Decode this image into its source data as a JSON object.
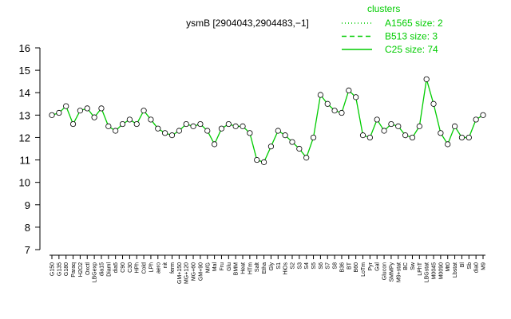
{
  "chart_data": {
    "type": "line",
    "title": "ysmB [2904043,2904483,−1]",
    "categories": [
      "G150",
      "G135",
      "G180",
      "Paraq",
      "H2O2",
      "Oxctl",
      "LBGexp",
      "dia15",
      "Diaml",
      "dia5",
      "C90",
      "C30",
      "HPh",
      "Cold",
      "LPh",
      "aero",
      "nit",
      "ferm",
      "GM+150",
      "MG+120",
      "MG+60",
      "GM+90",
      "M/G",
      "Mal",
      "Fru",
      "Glu",
      "BMM",
      "Heat",
      "HTm",
      "Salt",
      "Etha",
      "Gly",
      "S1",
      "HiOs",
      "S2",
      "S3",
      "S4",
      "S5",
      "S6",
      "S7",
      "S8",
      "B36",
      "BT",
      "B60",
      "LoTm",
      "Pyr",
      "Gal",
      "Glucon",
      "SMMPy",
      "M9+stat",
      "BC",
      "Sw",
      "LPhT",
      "LBGstat",
      "M0045",
      "M0090",
      "Mt0",
      "Lbstat",
      "Bl",
      "Sb",
      "dia0",
      "M9"
    ],
    "series": [
      {
        "name": "C25 size: 74",
        "color": "#00cc00",
        "values": [
          13.0,
          13.1,
          13.4,
          12.6,
          13.2,
          13.3,
          12.9,
          13.3,
          12.5,
          12.3,
          12.6,
          12.8,
          12.6,
          13.2,
          12.8,
          12.4,
          12.2,
          12.1,
          12.3,
          12.6,
          12.5,
          12.6,
          12.3,
          11.7,
          12.4,
          12.6,
          12.5,
          12.5,
          12.2,
          11.0,
          10.9,
          11.6,
          12.3,
          12.1,
          11.8,
          11.5,
          11.1,
          12.0,
          13.9,
          13.5,
          13.2,
          13.1,
          14.1,
          13.8,
          12.1,
          12.0,
          12.8,
          12.3,
          12.6,
          12.5,
          12.1,
          12.0,
          12.5,
          14.6,
          13.5,
          12.2,
          11.7,
          12.5,
          12.0,
          12.0,
          12.8,
          13.0
        ]
      }
    ],
    "legend": {
      "title": "clusters",
      "entries": [
        {
          "label": "A1565 size: 2",
          "dash": "1,3"
        },
        {
          "label": "B513 size: 3",
          "dash": "6,4"
        },
        {
          "label": "C25 size: 74",
          "dash": "none"
        }
      ]
    },
    "ylim": [
      7,
      16
    ],
    "yticks": [
      7,
      8,
      9,
      10,
      11,
      12,
      13,
      14,
      15,
      16
    ]
  }
}
